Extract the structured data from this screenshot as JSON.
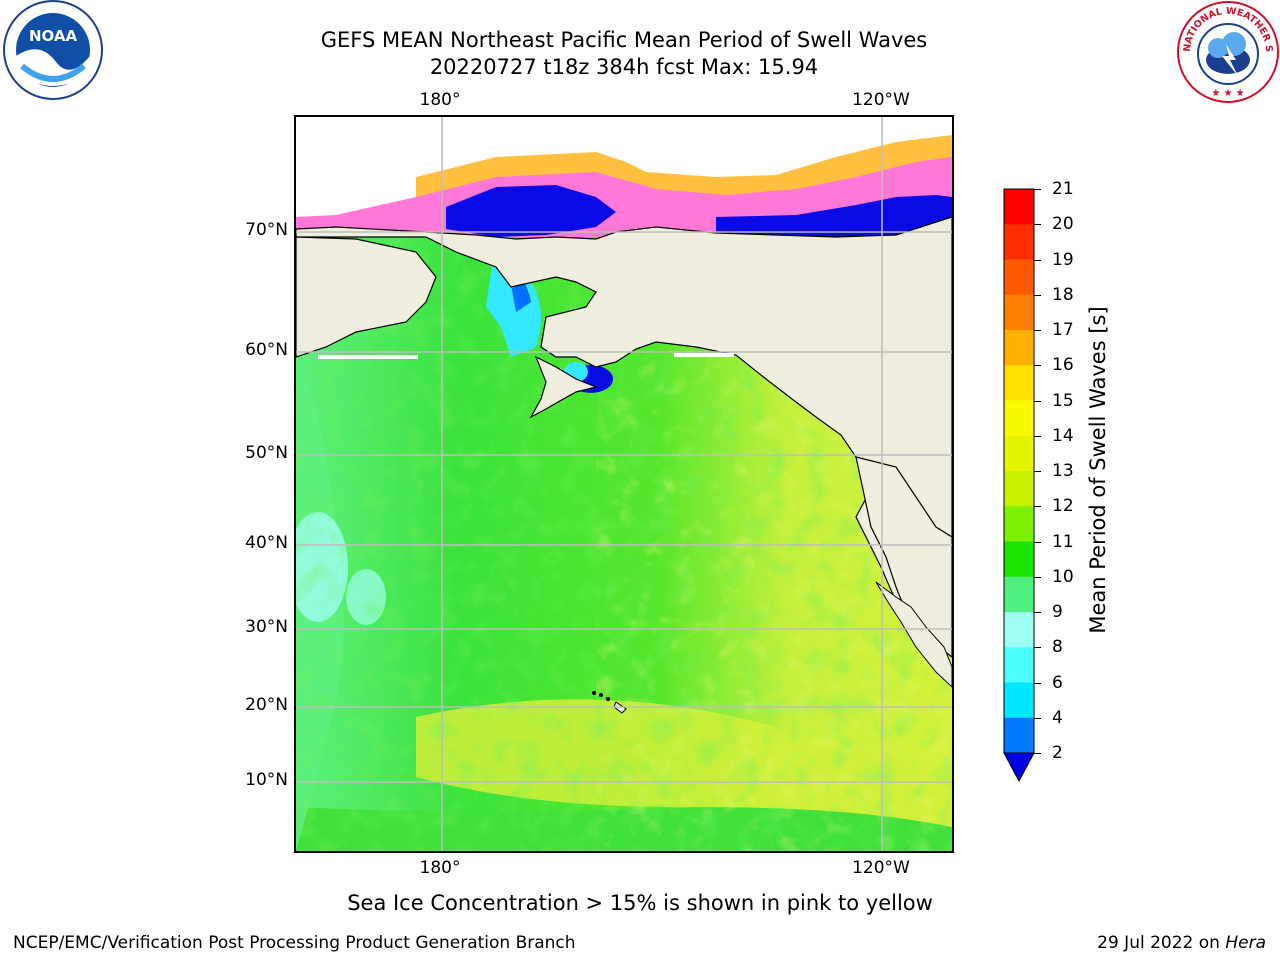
{
  "title": {
    "line1": "GEFS MEAN Northeast Pacific Mean Period of Swell Waves",
    "line2": "20220727 t18z 384h fcst   Max: 15.94"
  },
  "logos": {
    "left": {
      "icon": "noaa-logo",
      "text": "NOAA"
    },
    "right": {
      "icon": "nws-logo",
      "text": "NATIONAL WEATHER SERVICE"
    }
  },
  "axes": {
    "lon_labels": [
      "180°",
      "120°W"
    ],
    "lat_labels": [
      "70°N",
      "60°N",
      "50°N",
      "40°N",
      "30°N",
      "20°N",
      "10°N"
    ]
  },
  "colorbar": {
    "title": "Mean Period of Swell Waves [s]",
    "ticks": [
      "21",
      "20",
      "19",
      "18",
      "17",
      "16",
      "15",
      "14",
      "13",
      "12",
      "11",
      "10",
      "9",
      "8",
      "6",
      "4",
      "2"
    ],
    "colors": [
      "#ff0000",
      "#ff2e00",
      "#ff5a00",
      "#ff8000",
      "#ffb000",
      "#ffe000",
      "#f8f800",
      "#e6f400",
      "#c8f000",
      "#7cf000",
      "#18e600",
      "#50f080",
      "#9cfff0",
      "#4cffff",
      "#00e8ff",
      "#0078ff",
      "#0000e8"
    ]
  },
  "map_colors": {
    "land": "#efeede",
    "ice_pink": "#ff78d8",
    "ice_orange": "#ffc040",
    "ice_yellow": "#ffe28a",
    "deep_blue": "#0a0ae6",
    "cyan": "#33e8ff",
    "light_cyan": "#a0fff4",
    "mint": "#5df080",
    "green": "#3ae23a",
    "bright_green": "#20e000",
    "yellow_green": "#c6f03c",
    "yellow": "#daf23a",
    "grid": "#bdbdbd"
  },
  "caption": "Sea Ice Concentration > 15% is shown in pink to yellow",
  "footer": {
    "left": "NCEP/EMC/Verification Post Processing Product Generation Branch",
    "right_date": "29 Jul 2022 on ",
    "right_host": "Hera"
  }
}
